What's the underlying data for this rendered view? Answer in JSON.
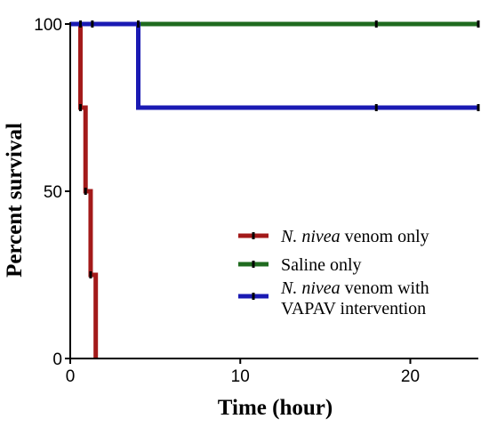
{
  "chart_data": {
    "type": "line",
    "xlabel": "Time (hour)",
    "ylabel": "Percent survival",
    "xlim": [
      0,
      24
    ],
    "ylim": [
      0,
      100
    ],
    "x_ticks": [
      0,
      10,
      20
    ],
    "y_ticks": [
      0,
      50,
      100
    ],
    "x_tick_labels": [
      "0",
      "10",
      "20"
    ],
    "y_tick_labels": [
      "0",
      "50",
      "100"
    ],
    "grid": false,
    "legend_position": "bottom-right",
    "series": [
      {
        "name": "N. nivea venom only",
        "name_parts": [
          {
            "text": "N. nivea",
            "italic": true
          },
          {
            "text": " venom only",
            "italic": false
          }
        ],
        "color": "#a31a1a",
        "steps": [
          [
            0,
            100
          ],
          [
            0.6,
            75
          ],
          [
            0.9,
            50
          ],
          [
            1.2,
            25
          ],
          [
            1.5,
            0
          ]
        ],
        "censor_marks": [
          [
            0.6,
            75
          ],
          [
            0.9,
            50
          ],
          [
            1.2,
            25
          ]
        ]
      },
      {
        "name": "Saline only",
        "name_parts": [
          {
            "text": "Saline only",
            "italic": false
          }
        ],
        "color": "#1f6b1f",
        "steps": [
          [
            0,
            100
          ],
          [
            24,
            100
          ]
        ],
        "censor_marks": [
          [
            0.6,
            100
          ],
          [
            1.3,
            100
          ],
          [
            18,
            100
          ],
          [
            24,
            100
          ]
        ]
      },
      {
        "name": "N. nivea venom with VAPAV intervention",
        "name_parts": [
          {
            "text": "N. nivea",
            "italic": true
          },
          {
            "text": " venom with",
            "italic": false
          },
          {
            "text": "\nVAPAV intervention",
            "italic": false
          }
        ],
        "color": "#1a1ab3",
        "steps": [
          [
            0,
            100
          ],
          [
            4,
            75
          ],
          [
            24,
            75
          ]
        ],
        "censor_marks": [
          [
            4,
            100
          ],
          [
            18,
            75
          ],
          [
            24,
            75
          ]
        ]
      }
    ]
  }
}
